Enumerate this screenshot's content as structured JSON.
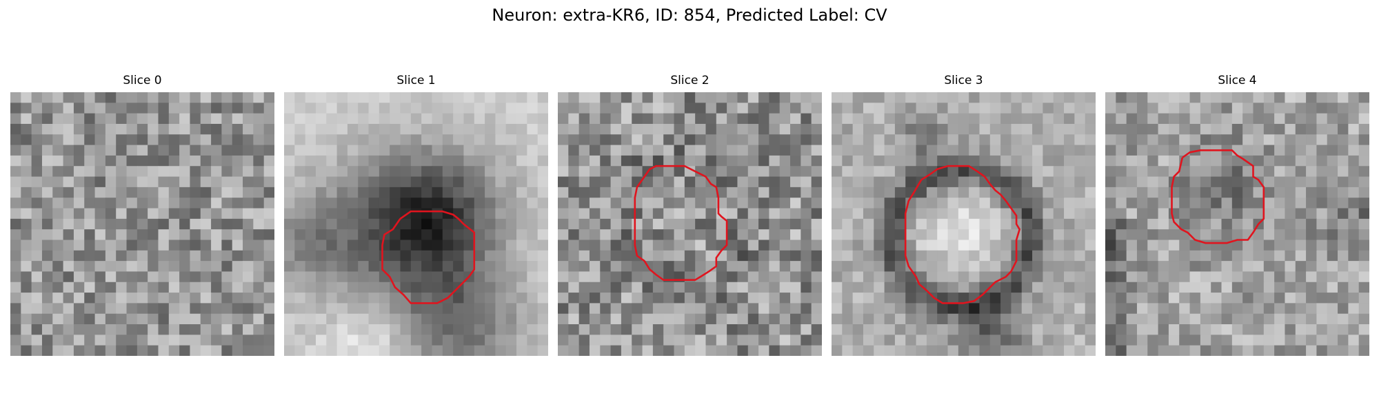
{
  "title": "Neuron: extra-KR6, ID: 854, Predicted Label: CV",
  "outline_color": "#e0141e",
  "panels": [
    {
      "title": "Slice 0"
    },
    {
      "title": "Slice 1"
    },
    {
      "title": "Slice 2"
    },
    {
      "title": "Slice 3"
    },
    {
      "title": "Slice 4"
    }
  ]
}
